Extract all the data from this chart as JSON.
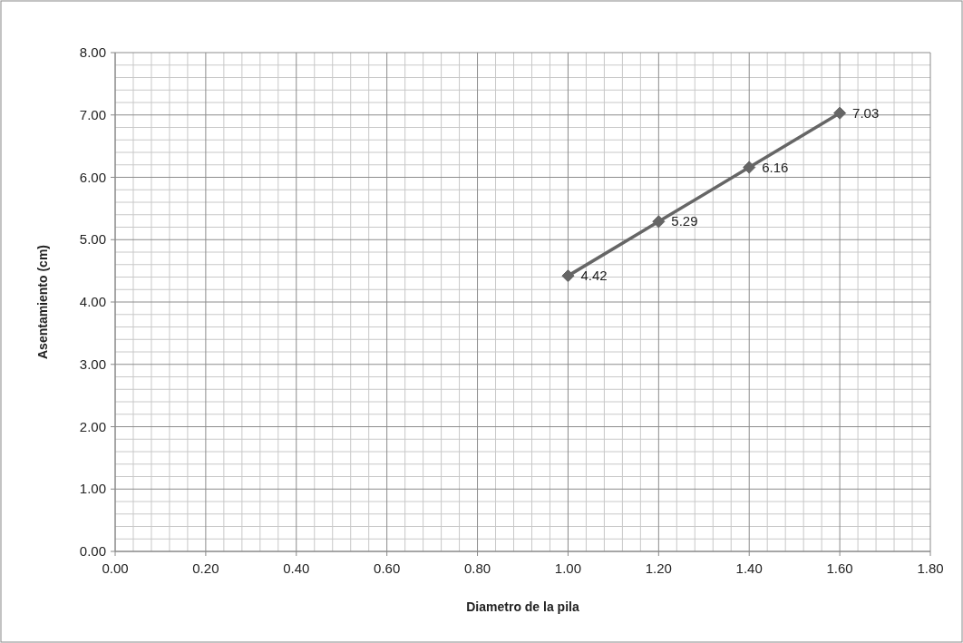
{
  "chart_data": {
    "type": "line",
    "xlabel": "Diametro de la pila",
    "ylabel": "Asentamiento (cm)",
    "x": [
      1.0,
      1.2,
      1.4,
      1.6
    ],
    "series": [
      {
        "color": "#666666",
        "values": [
          4.42,
          5.29,
          6.16,
          7.03
        ]
      }
    ],
    "xlim": [
      0,
      1.8
    ],
    "ylim": [
      0,
      8
    ],
    "xticks": [
      {
        "value": 0,
        "label": "0.00"
      },
      {
        "value": 0.2,
        "label": "0.20"
      },
      {
        "value": 0.4,
        "label": "0.40"
      },
      {
        "value": 0.6,
        "label": "0.60"
      },
      {
        "value": 0.8,
        "label": "0.80"
      },
      {
        "value": 1.0,
        "label": "1.00"
      },
      {
        "value": 1.2,
        "label": "1.20"
      },
      {
        "value": 1.4,
        "label": "1.40"
      },
      {
        "value": 1.6,
        "label": "1.60"
      },
      {
        "value": 1.8,
        "label": "1.80"
      }
    ],
    "yticks": [
      {
        "value": 0,
        "label": "0.00"
      },
      {
        "value": 1,
        "label": "1.00"
      },
      {
        "value": 2,
        "label": "2.00"
      },
      {
        "value": 3,
        "label": "3.00"
      },
      {
        "value": 4,
        "label": "4.00"
      },
      {
        "value": 5,
        "label": "5.00"
      },
      {
        "value": 6,
        "label": "6.00"
      },
      {
        "value": 7,
        "label": "7.00"
      },
      {
        "value": 8,
        "label": "8.00"
      }
    ],
    "grid": true,
    "marker": "diamond",
    "line_style": "solid",
    "data_labels": true
  }
}
